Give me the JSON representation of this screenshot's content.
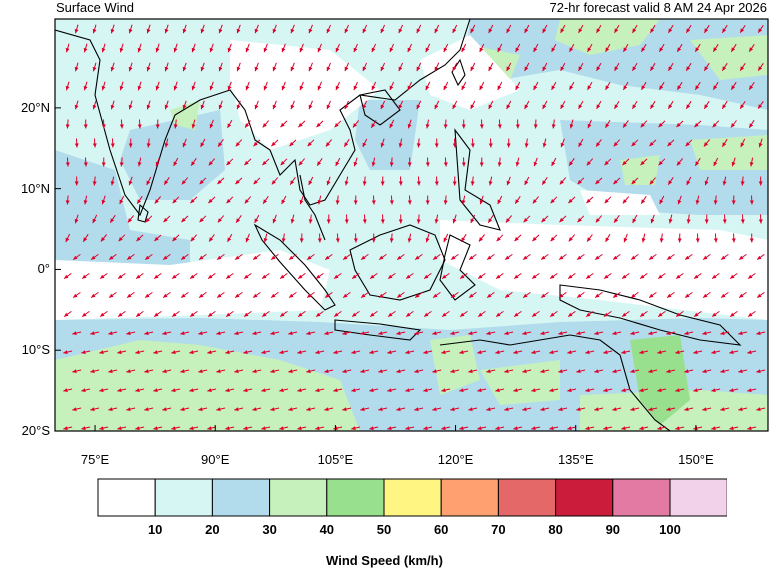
{
  "header": {
    "title": "Surface Wind",
    "forecast": "72-hr forecast valid 8 AM 24 Apr 2026"
  },
  "map": {
    "lat_labels": [
      "20°N",
      "10°N",
      "0°",
      "10°S",
      "20°S"
    ],
    "lat_values": [
      20,
      10,
      0,
      -10,
      -20
    ],
    "lon_labels": [
      "75°E",
      "90°E",
      "105°E",
      "120°E",
      "135°E",
      "150°E"
    ],
    "lon_values": [
      75,
      90,
      105,
      120,
      135,
      150
    ],
    "extent": {
      "lon_min": 70,
      "lon_max": 159,
      "lat_min": -20,
      "lat_max": 31
    },
    "arrow_color": "#e0002a",
    "coast_color": "#000000"
  },
  "legend": {
    "title": "Wind Speed (km/h)",
    "tick_labels": [
      "10",
      "20",
      "30",
      "40",
      "50",
      "60",
      "70",
      "80",
      "90",
      "100"
    ],
    "colors": [
      "#ffffff",
      "#d6f6f4",
      "#b2dcec",
      "#c6f0bc",
      "#98e08e",
      "#fef582",
      "#fea070",
      "#e46868",
      "#cc1c3c",
      "#e27aa4",
      "#f2d2ea"
    ]
  }
}
